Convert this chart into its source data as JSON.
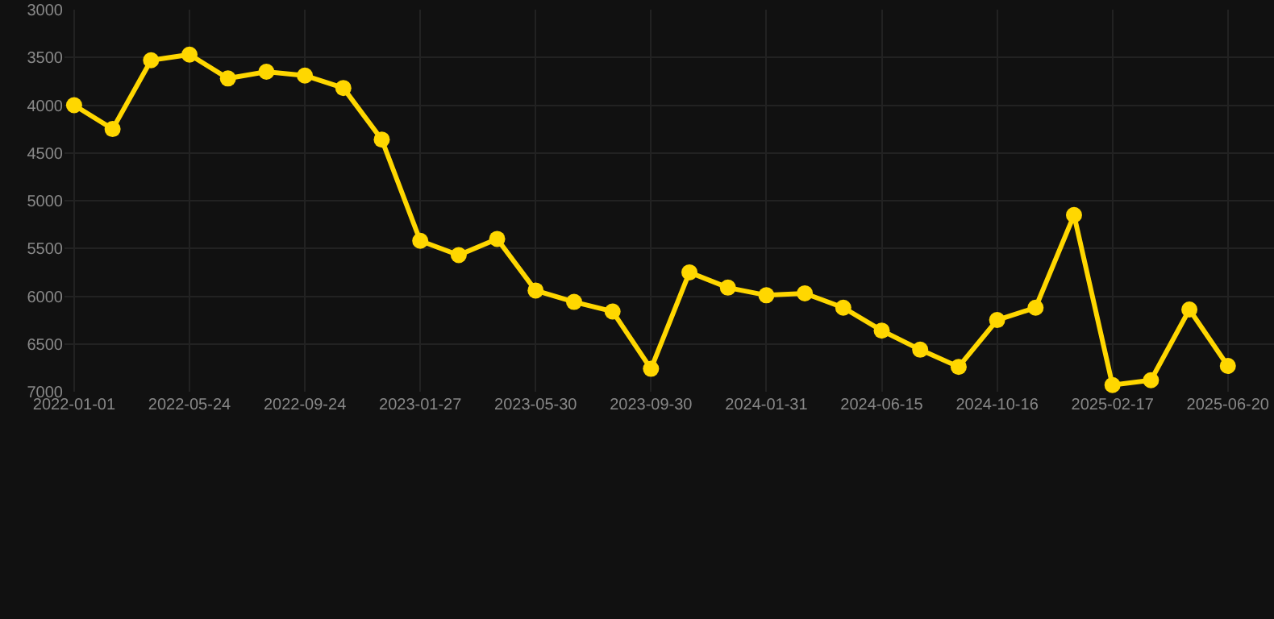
{
  "chart_data": {
    "type": "line",
    "categories": [
      "2022-01-01",
      null,
      null,
      "2022-05-24",
      null,
      null,
      "2022-09-24",
      null,
      null,
      "2023-01-27",
      null,
      null,
      "2023-05-30",
      null,
      null,
      "2023-09-30",
      null,
      null,
      "2024-01-31",
      null,
      null,
      "2024-06-15",
      null,
      null,
      "2024-10-16",
      null,
      null,
      "2025-02-17",
      null,
      null,
      "2025-06-20"
    ],
    "series": [
      {
        "color": "#ffd700",
        "values": [
          4000,
          4250,
          3530,
          3470,
          3720,
          3650,
          3690,
          3820,
          4360,
          5420,
          5570,
          5400,
          5940,
          6060,
          6160,
          6760,
          5750,
          5910,
          5990,
          5970,
          6120,
          6360,
          6560,
          6740,
          6250,
          6120,
          5150,
          6930,
          6880,
          6140,
          6730
        ]
      }
    ],
    "ylim": [
      7000,
      3000
    ],
    "yticks": [
      3000,
      3500,
      4000,
      4500,
      5000,
      5500,
      6000,
      6500,
      7000
    ],
    "grid": true,
    "marker": "circle",
    "line_style": "solid"
  }
}
